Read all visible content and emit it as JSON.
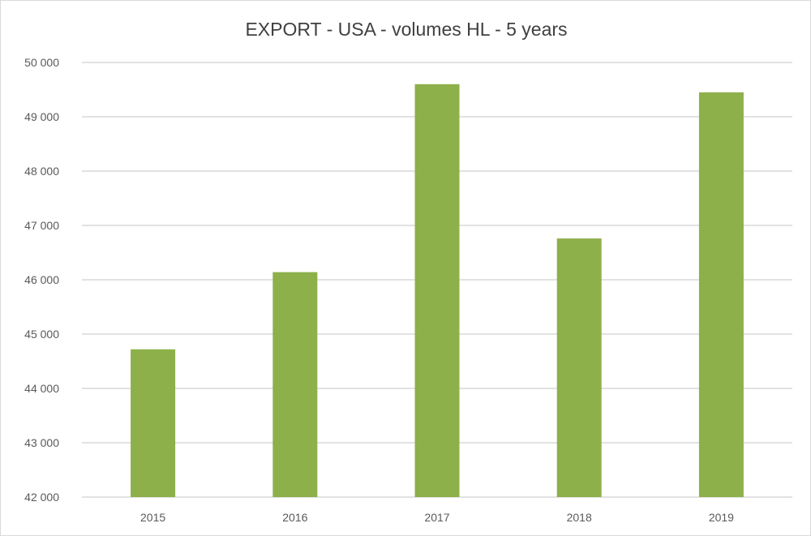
{
  "chart_data": {
    "type": "bar",
    "title": "EXPORT - USA - volumes HL - 5 years",
    "xlabel": "",
    "ylabel": "",
    "categories": [
      "2015",
      "2016",
      "2017",
      "2018",
      "2019"
    ],
    "values": [
      44720,
      46140,
      49600,
      46760,
      49450
    ],
    "ylim": [
      42000,
      50000
    ],
    "yticks": [
      42000,
      43000,
      44000,
      45000,
      46000,
      47000,
      48000,
      49000,
      50000
    ],
    "ytick_labels": [
      "42 000",
      "43 000",
      "44 000",
      "45 000",
      "46 000",
      "47 000",
      "48 000",
      "49 000",
      "50 000"
    ],
    "grid": true,
    "legend": "none",
    "colors": {
      "bar": "#8db04a",
      "grid": "#d9d9d9",
      "text": "#595959",
      "title": "#404040"
    }
  }
}
